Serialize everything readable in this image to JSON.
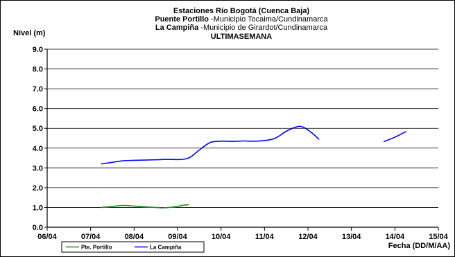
{
  "chart_data": {
    "type": "line",
    "title": "Estaciones Río Bogotá (Cuenca Baja)",
    "subtitle_lines": [
      {
        "bold": "Puente Portillo",
        "normal": " -Municipio Tocaima/Cundinamarca"
      },
      {
        "bold": "La Campiña",
        "normal": " -Municipio de Girardot/Cundinamarca"
      },
      {
        "bold": "ULTIMASEMANA",
        "normal": ""
      }
    ],
    "ylabel": "Nivel (m)",
    "xlabel": "Fecha (DD/M/AA)",
    "ylim": [
      0,
      9
    ],
    "yticks": [
      "0.0",
      "1.0",
      "2.0",
      "3.0",
      "4.0",
      "5.0",
      "6.0",
      "7.0",
      "8.0",
      "9.0"
    ],
    "xlim_day": [
      6,
      15
    ],
    "xticks": [
      "06/04",
      "07/04",
      "08/04",
      "09/04",
      "10/04",
      "11/04",
      "12/04",
      "13/04",
      "14/04",
      "15/04"
    ],
    "grid": "horizontal",
    "legend_position": "bottom-left",
    "series": [
      {
        "name": "Pte. Portillo",
        "color": "#1f8c1f",
        "segments": [
          [
            [
              7.25,
              1.0
            ],
            [
              7.5,
              1.05
            ],
            [
              7.75,
              1.1
            ],
            [
              8.0,
              1.07
            ],
            [
              8.25,
              1.03
            ],
            [
              8.5,
              1.0
            ],
            [
              8.65,
              0.98
            ],
            [
              8.85,
              1.01
            ],
            [
              9.0,
              1.05
            ],
            [
              9.1,
              1.1
            ],
            [
              9.25,
              1.14
            ]
          ]
        ]
      },
      {
        "name": "La Campiña",
        "color": "#0000ff",
        "segments": [
          [
            [
              7.25,
              3.2
            ],
            [
              7.5,
              3.28
            ],
            [
              7.75,
              3.36
            ],
            [
              8.0,
              3.38
            ],
            [
              8.5,
              3.41
            ],
            [
              8.75,
              3.43
            ],
            [
              9.0,
              3.42
            ],
            [
              9.15,
              3.44
            ],
            [
              9.3,
              3.55
            ],
            [
              9.5,
              3.9
            ],
            [
              9.75,
              4.28
            ],
            [
              10.0,
              4.35
            ],
            [
              10.25,
              4.34
            ],
            [
              10.5,
              4.36
            ],
            [
              10.75,
              4.35
            ],
            [
              11.0,
              4.38
            ],
            [
              11.25,
              4.5
            ],
            [
              11.5,
              4.85
            ],
            [
              11.75,
              5.08
            ],
            [
              11.9,
              5.05
            ],
            [
              12.1,
              4.75
            ],
            [
              12.25,
              4.45
            ]
          ],
          [
            [
              13.75,
              4.33
            ],
            [
              14.0,
              4.55
            ],
            [
              14.25,
              4.83
            ]
          ]
        ]
      }
    ]
  }
}
